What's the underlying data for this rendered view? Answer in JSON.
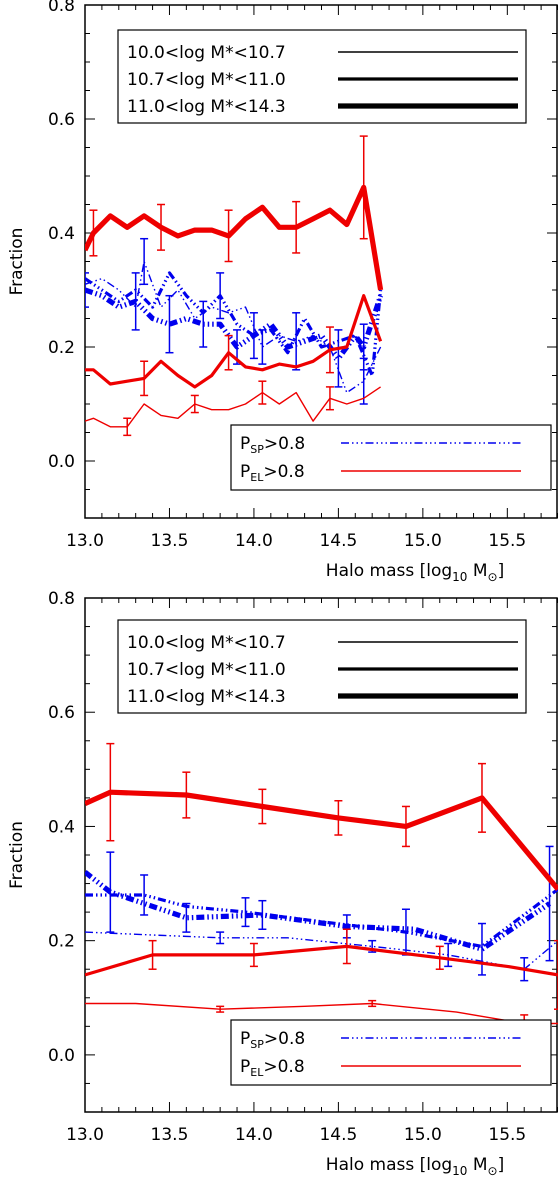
{
  "chart_data": [
    {
      "type": "line",
      "xlabel": "Halo mass [log",
      "xlabel_sub": "10",
      "xlabel_unit": " M",
      "ylabel": "Fraction",
      "xlim": [
        13.0,
        15.8
      ],
      "ylim": [
        -0.1,
        0.8
      ],
      "x_ticks": [
        "13.0",
        "13.5",
        "14.0",
        "14.5",
        "15.0",
        "15.5"
      ],
      "y_ticks": [
        "0.0",
        "0.2",
        "0.4",
        "0.6",
        "0.8"
      ],
      "legend_mass": [
        {
          "label": "10.0<log M*<10.7",
          "width": 1
        },
        {
          "label": "10.7<log M*<11.0",
          "width": 2
        },
        {
          "label": "11.0<log M*<14.3",
          "width": 3
        }
      ],
      "legend_type": [
        {
          "sym": "P",
          "sub": "SP",
          "rest": ">0.8",
          "color": "#0000ee",
          "dash": "dashdotdotdot"
        },
        {
          "sym": "P",
          "sub": "EL",
          "rest": ">0.8",
          "color": "#ee0000",
          "dash": "solid"
        }
      ],
      "series": [
        {
          "type": "SP",
          "bin": 1,
          "x": [
            13.0,
            13.1,
            13.2,
            13.3,
            13.35,
            13.45,
            13.55,
            13.65,
            13.75,
            13.85,
            13.95,
            14.05,
            14.15,
            14.25,
            14.35,
            14.45,
            14.55,
            14.65,
            14.75
          ],
          "y": [
            0.31,
            0.32,
            0.3,
            0.27,
            0.35,
            0.27,
            0.3,
            0.25,
            0.27,
            0.26,
            0.27,
            0.2,
            0.22,
            0.21,
            0.22,
            0.2,
            0.12,
            0.14,
            0.2
          ],
          "yerr": [
            0,
            0,
            0,
            0,
            0.04,
            0,
            0,
            0,
            0,
            0,
            0,
            0.03,
            0,
            0.05,
            0,
            0,
            0,
            0.04,
            0
          ]
        },
        {
          "type": "SP",
          "bin": 2,
          "x": [
            13.0,
            13.1,
            13.2,
            13.3,
            13.4,
            13.5,
            13.6,
            13.7,
            13.8,
            13.9,
            14.0,
            14.1,
            14.2,
            14.3,
            14.4,
            14.5,
            14.6,
            14.7,
            14.75
          ],
          "y": [
            0.32,
            0.3,
            0.28,
            0.3,
            0.27,
            0.33,
            0.29,
            0.26,
            0.29,
            0.24,
            0.22,
            0.23,
            0.19,
            0.25,
            0.2,
            0.21,
            0.22,
            0.15,
            0.3
          ],
          "yerr": [
            0,
            0,
            0,
            0,
            0,
            0,
            0,
            0,
            0.04,
            0,
            0,
            0,
            0,
            0,
            0,
            0,
            0,
            0,
            0
          ]
        },
        {
          "type": "SP",
          "bin": 3,
          "x": [
            13.0,
            13.1,
            13.2,
            13.3,
            13.4,
            13.5,
            13.6,
            13.7,
            13.8,
            13.9,
            14.0,
            14.1,
            14.2,
            14.3,
            14.4,
            14.5,
            14.6,
            14.65,
            14.75
          ],
          "y": [
            0.3,
            0.29,
            0.27,
            0.28,
            0.25,
            0.24,
            0.25,
            0.24,
            0.24,
            0.2,
            0.22,
            0.24,
            0.2,
            0.21,
            0.22,
            0.18,
            0.22,
            0.2,
            0.29
          ],
          "yerr": [
            0.03,
            0,
            0,
            0.05,
            0,
            0.05,
            0,
            0.04,
            0,
            0.03,
            0.04,
            0,
            0,
            0,
            0,
            0.05,
            0,
            0.04,
            0
          ]
        },
        {
          "type": "EL",
          "bin": 1,
          "x": [
            13.0,
            13.05,
            13.15,
            13.25,
            13.35,
            13.45,
            13.55,
            13.65,
            13.75,
            13.85,
            13.95,
            14.05,
            14.15,
            14.25,
            14.35,
            14.45,
            14.55,
            14.65,
            14.75
          ],
          "y": [
            0.07,
            0.075,
            0.06,
            0.06,
            0.1,
            0.08,
            0.075,
            0.1,
            0.09,
            0.09,
            0.1,
            0.12,
            0.1,
            0.12,
            0.07,
            0.11,
            0.1,
            0.11,
            0.13
          ],
          "yerr": [
            0,
            0,
            0,
            0.015,
            0,
            0,
            0,
            0.015,
            0,
            0,
            0,
            0.02,
            0,
            0,
            0,
            0.02,
            0,
            0,
            0
          ]
        },
        {
          "type": "EL",
          "bin": 2,
          "x": [
            13.0,
            13.05,
            13.15,
            13.25,
            13.35,
            13.45,
            13.55,
            13.65,
            13.75,
            13.85,
            13.95,
            14.05,
            14.15,
            14.25,
            14.35,
            14.45,
            14.55,
            14.65,
            14.75
          ],
          "y": [
            0.16,
            0.16,
            0.135,
            0.14,
            0.145,
            0.175,
            0.15,
            0.13,
            0.15,
            0.19,
            0.165,
            0.16,
            0.17,
            0.165,
            0.175,
            0.195,
            0.2,
            0.29,
            0.21
          ],
          "yerr": [
            0,
            0,
            0,
            0,
            0.03,
            0,
            0,
            0,
            0,
            0.03,
            0,
            0,
            0,
            0,
            0,
            0.04,
            0,
            0,
            0
          ]
        },
        {
          "type": "EL",
          "bin": 3,
          "x": [
            13.0,
            13.05,
            13.15,
            13.25,
            13.35,
            13.45,
            13.55,
            13.65,
            13.75,
            13.85,
            13.95,
            14.05,
            14.15,
            14.25,
            14.35,
            14.45,
            14.55,
            14.65,
            14.75
          ],
          "y": [
            0.37,
            0.4,
            0.43,
            0.41,
            0.43,
            0.41,
            0.395,
            0.405,
            0.405,
            0.395,
            0.425,
            0.445,
            0.41,
            0.41,
            0.425,
            0.44,
            0.415,
            0.48,
            0.3
          ],
          "yerr": [
            0,
            0.04,
            0,
            0,
            0,
            0.04,
            0,
            0,
            0,
            0.045,
            0,
            0,
            0,
            0.045,
            0,
            0,
            0,
            0.09,
            0
          ]
        }
      ]
    },
    {
      "type": "line",
      "xlabel": "Halo mass [log",
      "xlabel_sub": "10",
      "xlabel_unit": " M",
      "ylabel": "Fraction",
      "xlim": [
        13.0,
        15.8
      ],
      "ylim": [
        -0.1,
        0.8
      ],
      "x_ticks": [
        "13.0",
        "13.5",
        "14.0",
        "14.5",
        "15.0",
        "15.5"
      ],
      "y_ticks": [
        "0.0",
        "0.2",
        "0.4",
        "0.6",
        "0.8"
      ],
      "legend_mass": [
        {
          "label": "10.0<log M*<10.7",
          "width": 1
        },
        {
          "label": "10.7<log M*<11.0",
          "width": 2
        },
        {
          "label": "11.0<log M*<14.3",
          "width": 3
        }
      ],
      "legend_type": [
        {
          "sym": "P",
          "sub": "SP",
          "rest": ">0.8",
          "color": "#0000ee",
          "dash": "dashdotdotdot"
        },
        {
          "sym": "P",
          "sub": "EL",
          "rest": ">0.8",
          "color": "#ee0000",
          "dash": "solid"
        }
      ],
      "series": [
        {
          "type": "SP",
          "bin": 1,
          "x": [
            13.0,
            13.4,
            13.8,
            14.2,
            14.7,
            15.15,
            15.6,
            15.8
          ],
          "y": [
            0.215,
            0.21,
            0.205,
            0.205,
            0.19,
            0.175,
            0.15,
            0.2
          ],
          "yerr": [
            0,
            0,
            0.01,
            0,
            0.01,
            0.02,
            0.02,
            0
          ]
        },
        {
          "type": "SP",
          "bin": 2,
          "x": [
            13.0,
            13.35,
            13.6,
            13.95,
            14.35,
            14.9,
            15.35,
            15.8
          ],
          "y": [
            0.28,
            0.28,
            0.26,
            0.25,
            0.235,
            0.215,
            0.19,
            0.29
          ],
          "yerr": [
            0,
            0.035,
            0,
            0.025,
            0,
            0.04,
            0,
            0
          ]
        },
        {
          "type": "SP",
          "bin": 3,
          "x": [
            13.0,
            13.15,
            13.6,
            14.05,
            14.55,
            14.95,
            15.35,
            15.75
          ],
          "y": [
            0.32,
            0.285,
            0.24,
            0.245,
            0.225,
            0.22,
            0.185,
            0.265
          ],
          "yerr": [
            0,
            0.07,
            0.025,
            0.025,
            0.02,
            0,
            0.045,
            0.1
          ]
        },
        {
          "type": "EL",
          "bin": 1,
          "x": [
            13.0,
            13.3,
            13.8,
            14.3,
            14.7,
            15.2,
            15.6,
            15.8
          ],
          "y": [
            0.09,
            0.09,
            0.08,
            0.085,
            0.09,
            0.075,
            0.055,
            0.055
          ],
          "yerr": [
            0,
            0,
            0.005,
            0,
            0.005,
            0,
            0.015,
            0
          ]
        },
        {
          "type": "EL",
          "bin": 2,
          "x": [
            13.0,
            13.4,
            14.0,
            14.55,
            15.1,
            15.5,
            15.8
          ],
          "y": [
            0.14,
            0.175,
            0.175,
            0.19,
            0.17,
            0.155,
            0.14
          ],
          "yerr": [
            0,
            0.025,
            0.02,
            0.03,
            0.02,
            0,
            0.06
          ]
        },
        {
          "type": "EL",
          "bin": 3,
          "x": [
            13.0,
            13.15,
            13.6,
            14.05,
            14.5,
            14.9,
            15.35,
            15.8
          ],
          "y": [
            0.44,
            0.46,
            0.455,
            0.435,
            0.415,
            0.4,
            0.45,
            0.29
          ],
          "yerr": [
            0,
            0.085,
            0.04,
            0.03,
            0.03,
            0.035,
            0.06,
            0
          ]
        }
      ]
    }
  ]
}
